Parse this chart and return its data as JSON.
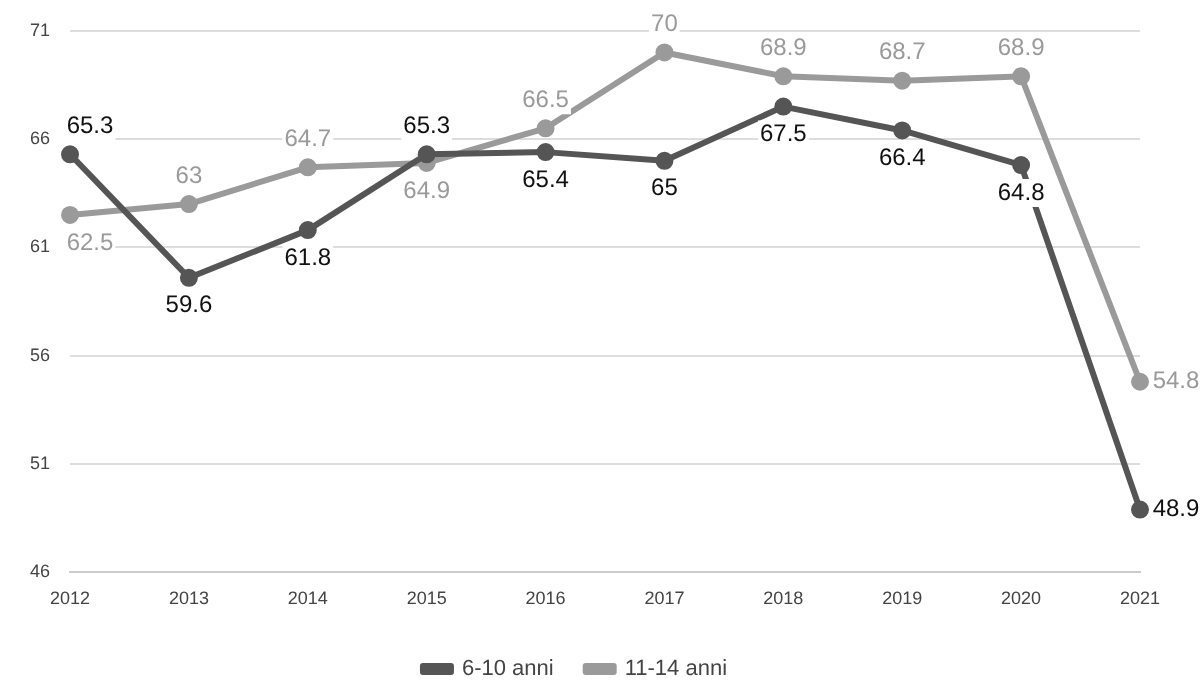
{
  "chart_data": {
    "type": "line",
    "categories": [
      "2012",
      "2013",
      "2014",
      "2015",
      "2016",
      "2017",
      "2018",
      "2019",
      "2020",
      "2021"
    ],
    "series": [
      {
        "name": "6-10 anni",
        "color": "#555555",
        "values": [
          65.3,
          59.6,
          61.8,
          65.3,
          65.4,
          65,
          67.5,
          66.4,
          64.8,
          48.9
        ]
      },
      {
        "name": "11-14 anni",
        "color": "#9a9a9a",
        "values": [
          62.5,
          63,
          64.7,
          64.9,
          66.5,
          70,
          68.9,
          68.7,
          68.9,
          54.8
        ]
      }
    ],
    "ylim": [
      46,
      71
    ],
    "yticks": [
      46,
      51,
      56,
      61,
      66,
      71
    ],
    "grid": "y",
    "legend": "bottom",
    "marker": "circle",
    "line_style": "solid",
    "data_labels": true
  }
}
